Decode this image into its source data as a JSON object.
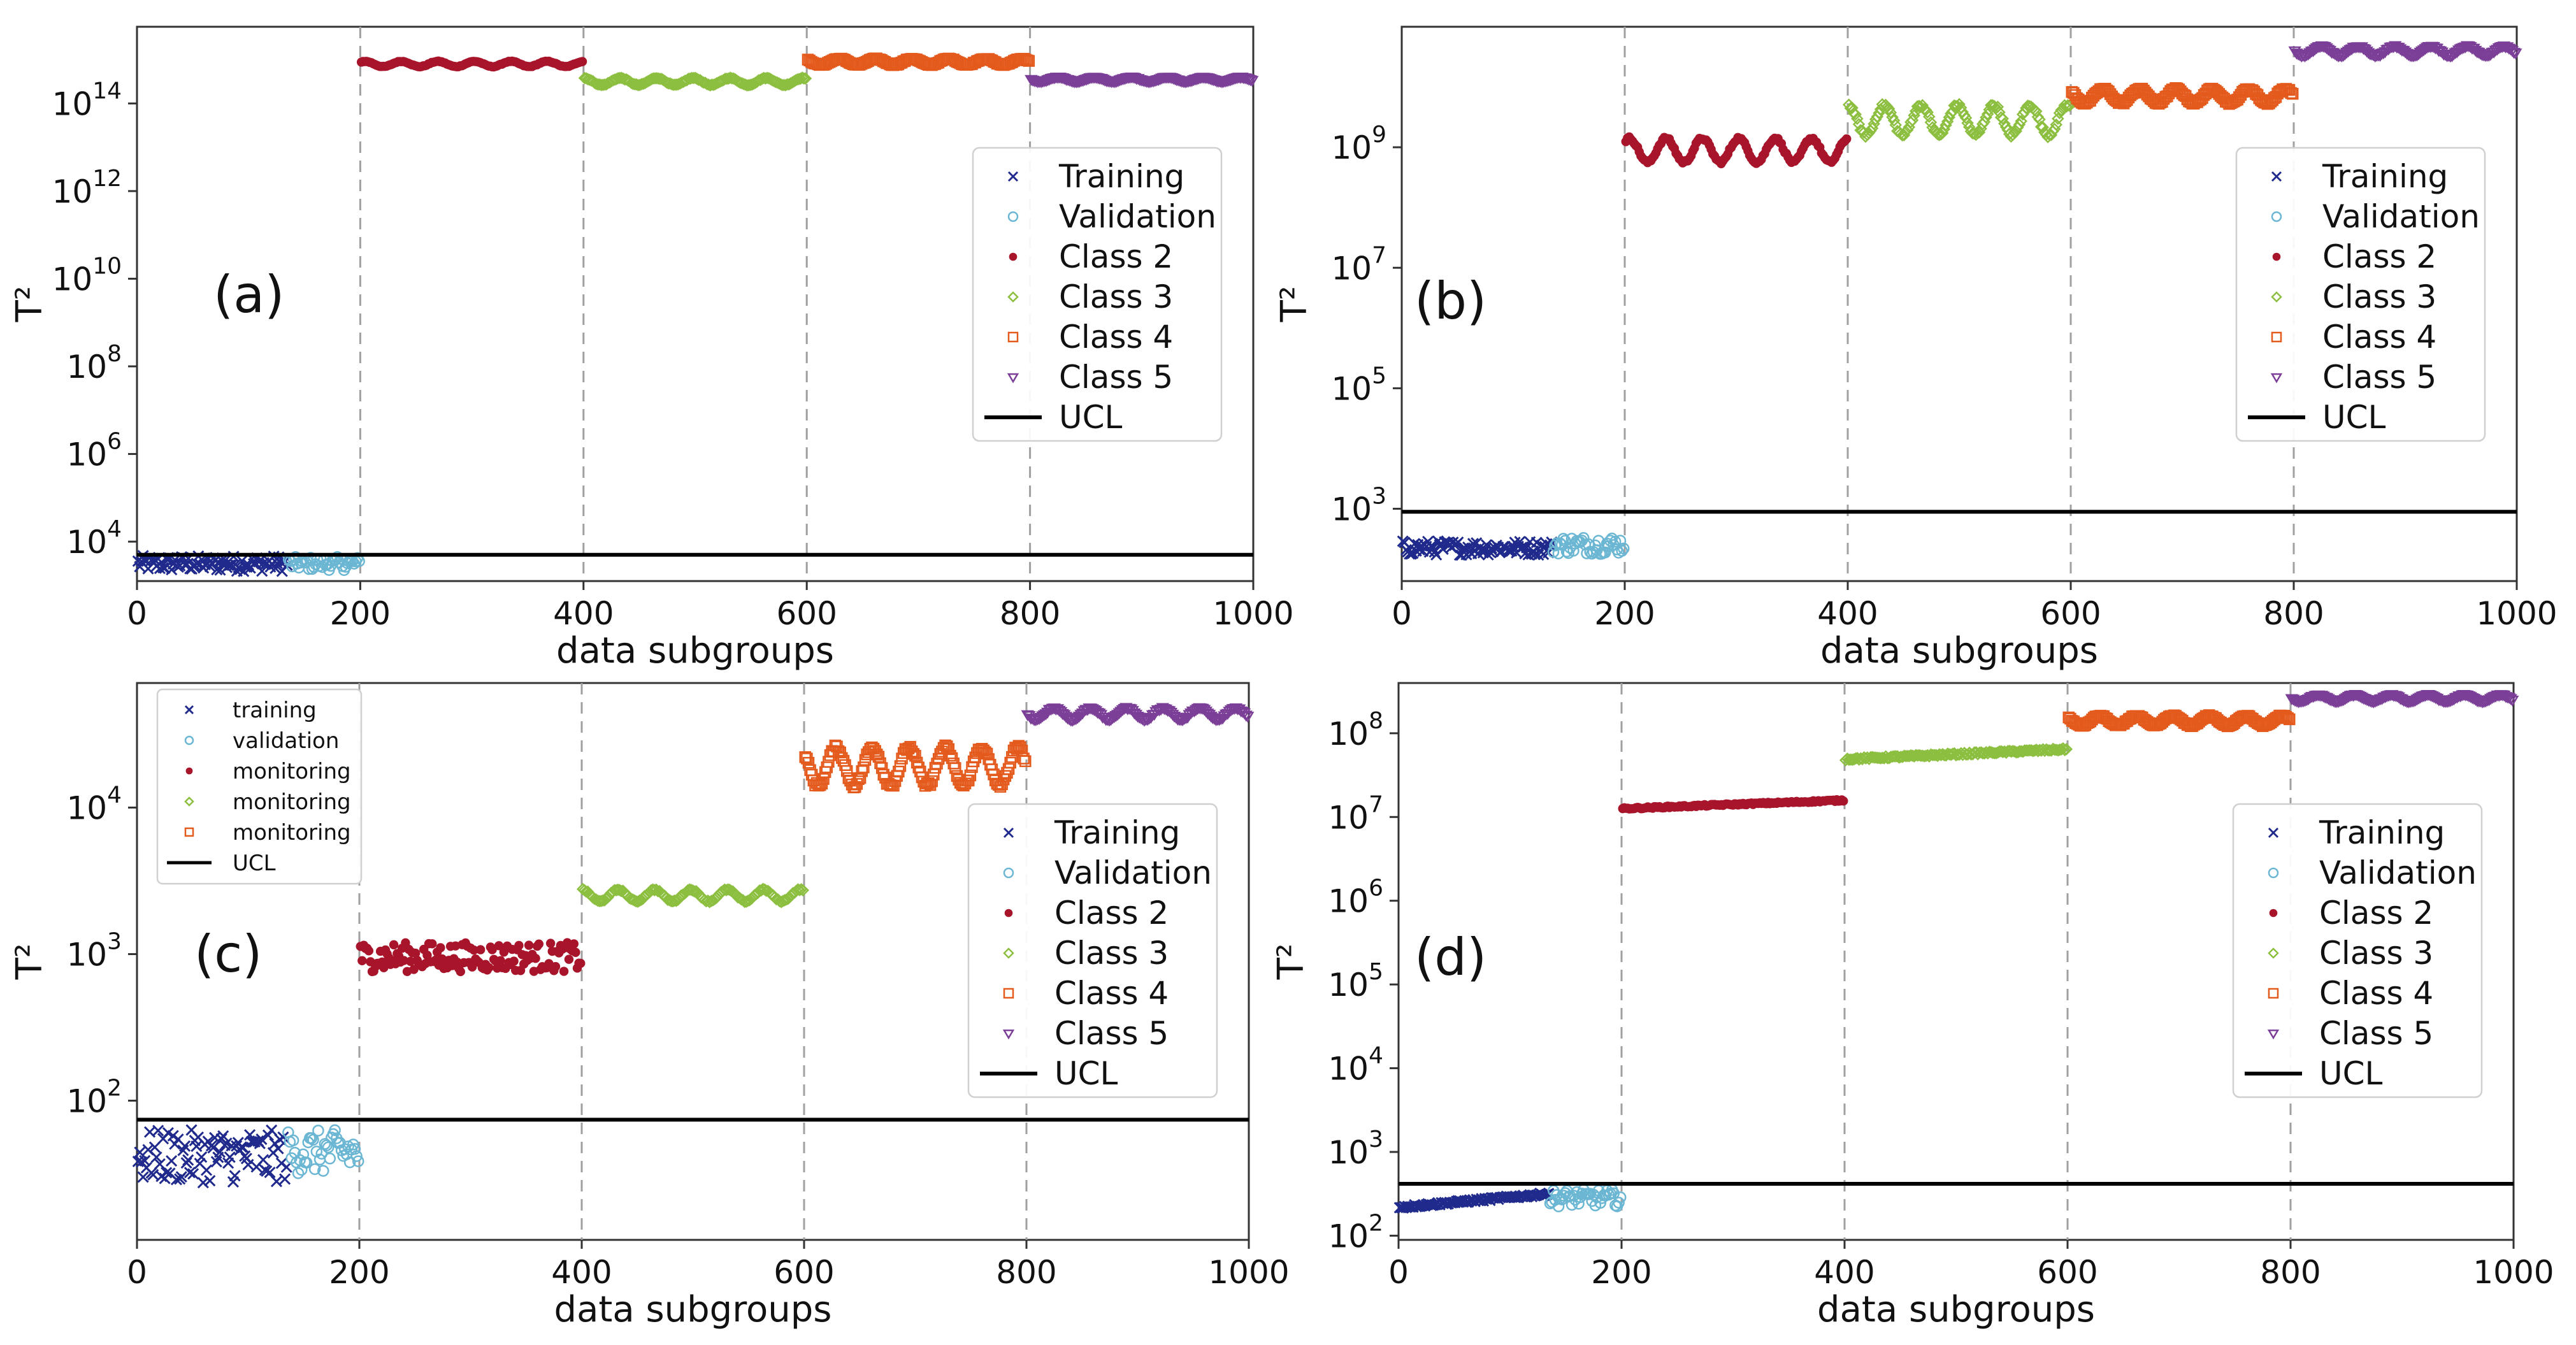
{
  "figure": {
    "colors": {
      "training": "#1f2a8c",
      "validation": "#6bb6d3",
      "class2": "#a8152b",
      "class3": "#8cbf3f",
      "class4": "#e45a1d",
      "class5": "#7b3f98",
      "ucl": "#000000",
      "divider": "#a0a0a0"
    },
    "legend": [
      {
        "name": "Training",
        "key": "training",
        "marker": "x"
      },
      {
        "name": "Validation",
        "key": "validation",
        "marker": "circle"
      },
      {
        "name": "Class 2",
        "key": "class2",
        "marker": "dot"
      },
      {
        "name": "Class 3",
        "key": "class3",
        "marker": "diamond"
      },
      {
        "name": "Class 4",
        "key": "class4",
        "marker": "square"
      },
      {
        "name": "Class 5",
        "key": "class5",
        "marker": "triangle-down"
      },
      {
        "name": "UCL",
        "key": "ucl",
        "marker": "line"
      }
    ],
    "inner_legend_c": [
      {
        "name": "training",
        "key": "training",
        "marker": "x"
      },
      {
        "name": "validation",
        "key": "validation",
        "marker": "circle"
      },
      {
        "name": "monitoring",
        "key": "class2",
        "marker": "dot"
      },
      {
        "name": "monitoring",
        "key": "class3",
        "marker": "diamond"
      },
      {
        "name": "monitoring",
        "key": "class4",
        "marker": "square"
      },
      {
        "name": "UCL",
        "key": "ucl",
        "marker": "line"
      }
    ]
  },
  "chart_data": [
    {
      "panel": "(a)",
      "type": "scatter",
      "xlabel": "data subgroups",
      "ylabel": "T²",
      "xlim": [
        0,
        1000
      ],
      "xticks": [
        0,
        200,
        400,
        600,
        800,
        1000
      ],
      "ylog": true,
      "ylim_log10": [
        3.1,
        15.75
      ],
      "yticks_log10": [
        4,
        6,
        8,
        10,
        12,
        14
      ],
      "ucl_log10": 3.7,
      "dividers": [
        200,
        400,
        600,
        800
      ],
      "legend_position": "right",
      "series": [
        {
          "name": "Training",
          "key": "training",
          "x_range": [
            1,
            135
          ],
          "log10_center": 3.5,
          "spread": 0.18,
          "pattern": "noise"
        },
        {
          "name": "Validation",
          "key": "validation",
          "x_range": [
            136,
            200
          ],
          "log10_center": 3.5,
          "spread": 0.15,
          "pattern": "noise"
        },
        {
          "name": "Class 2",
          "key": "class2",
          "x_range": [
            201,
            400
          ],
          "log10_center": 14.9,
          "spread": 0.06,
          "pattern": "wave"
        },
        {
          "name": "Class 3",
          "key": "class3",
          "x_range": [
            401,
            600
          ],
          "log10_center": 14.5,
          "spread": 0.08,
          "pattern": "wave"
        },
        {
          "name": "Class 4",
          "key": "class4",
          "x_range": [
            601,
            800
          ],
          "log10_center": 14.95,
          "spread": 0.07,
          "pattern": "wave"
        },
        {
          "name": "Class 5",
          "key": "class5",
          "x_range": [
            801,
            1000
          ],
          "log10_center": 14.55,
          "spread": 0.05,
          "pattern": "wave"
        }
      ]
    },
    {
      "panel": "(b)",
      "type": "scatter",
      "xlabel": "data subgroups",
      "ylabel": "T²",
      "xlim": [
        0,
        1000
      ],
      "xticks": [
        0,
        200,
        400,
        600,
        800,
        1000
      ],
      "ylog": true,
      "ylim_log10": [
        1.8,
        11.0
      ],
      "yticks_log10": [
        3,
        5,
        7,
        9
      ],
      "ucl_log10": 2.95,
      "dividers": [
        200,
        400,
        600,
        800
      ],
      "legend_position": "right",
      "series": [
        {
          "name": "Training",
          "key": "training",
          "x_range": [
            1,
            135
          ],
          "log10_center": 2.35,
          "spread": 0.12,
          "pattern": "noise"
        },
        {
          "name": "Validation",
          "key": "validation",
          "x_range": [
            136,
            200
          ],
          "log10_center": 2.4,
          "spread": 0.15,
          "pattern": "noise"
        },
        {
          "name": "Class 2",
          "key": "class2",
          "x_range": [
            201,
            400
          ],
          "log10_center": 8.95,
          "spread": 0.2,
          "pattern": "wave"
        },
        {
          "name": "Class 3",
          "key": "class3",
          "x_range": [
            401,
            600
          ],
          "log10_center": 9.45,
          "spread": 0.25,
          "pattern": "wave"
        },
        {
          "name": "Class 4",
          "key": "class4",
          "x_range": [
            601,
            800
          ],
          "log10_center": 9.85,
          "spread": 0.12,
          "pattern": "wave"
        },
        {
          "name": "Class 5",
          "key": "class5",
          "x_range": [
            801,
            1000
          ],
          "log10_center": 10.6,
          "spread": 0.08,
          "pattern": "wave"
        }
      ]
    },
    {
      "panel": "(c)",
      "type": "scatter",
      "xlabel": "data subgroups",
      "ylabel": "T²",
      "xlim": [
        0,
        1000
      ],
      "xticks": [
        0,
        200,
        400,
        600,
        800,
        1000
      ],
      "ylog": true,
      "ylim_log10": [
        1.05,
        4.85
      ],
      "yticks_log10": [
        2,
        3,
        4
      ],
      "ucl_log10": 1.87,
      "dividers": [
        200,
        400,
        600,
        800
      ],
      "legend_position": "right",
      "series": [
        {
          "name": "Training",
          "key": "training",
          "x_range": [
            1,
            135
          ],
          "log10_center": 1.62,
          "spread": 0.18,
          "pattern": "noise"
        },
        {
          "name": "Validation",
          "key": "validation",
          "x_range": [
            136,
            200
          ],
          "log10_center": 1.65,
          "spread": 0.15,
          "pattern": "noise"
        },
        {
          "name": "Class 2",
          "key": "class2",
          "x_range": [
            201,
            400
          ],
          "log10_center": 2.98,
          "spread": 0.1,
          "pattern": "noise"
        },
        {
          "name": "Class 3",
          "key": "class3",
          "x_range": [
            401,
            600
          ],
          "log10_center": 3.4,
          "spread": 0.04,
          "pattern": "wave"
        },
        {
          "name": "Class 4",
          "key": "class4",
          "x_range": [
            601,
            800
          ],
          "log10_center": 4.28,
          "spread": 0.13,
          "pattern": "wave"
        },
        {
          "name": "Class 5",
          "key": "class5",
          "x_range": [
            801,
            1000
          ],
          "log10_center": 4.64,
          "spread": 0.04,
          "pattern": "wave"
        }
      ]
    },
    {
      "panel": "(d)",
      "type": "scatter",
      "xlabel": "data subgroups",
      "ylabel": "T²",
      "xlim": [
        0,
        1000
      ],
      "xticks": [
        0,
        200,
        400,
        600,
        800,
        1000
      ],
      "ylog": true,
      "ylim_log10": [
        1.95,
        8.6
      ],
      "yticks_log10": [
        2,
        3,
        4,
        5,
        6,
        7,
        8
      ],
      "ucl_log10": 2.62,
      "dividers": [
        200,
        400,
        600,
        800
      ],
      "legend_position": "right",
      "series": [
        {
          "name": "Training",
          "key": "training",
          "x_range": [
            1,
            135
          ],
          "log10_center": 2.42,
          "spread": 0.08,
          "pattern": "rise"
        },
        {
          "name": "Validation",
          "key": "validation",
          "x_range": [
            136,
            200
          ],
          "log10_center": 2.45,
          "spread": 0.1,
          "pattern": "noise"
        },
        {
          "name": "Class 2",
          "key": "class2",
          "x_range": [
            201,
            400
          ],
          "log10_center": 7.15,
          "spread": 0.05,
          "pattern": "rise"
        },
        {
          "name": "Class 3",
          "key": "class3",
          "x_range": [
            401,
            600
          ],
          "log10_center": 7.75,
          "spread": 0.06,
          "pattern": "rise"
        },
        {
          "name": "Class 4",
          "key": "class4",
          "x_range": [
            601,
            800
          ],
          "log10_center": 8.15,
          "spread": 0.06,
          "pattern": "wave"
        },
        {
          "name": "Class 5",
          "key": "class5",
          "x_range": [
            801,
            1000
          ],
          "log10_center": 8.42,
          "spread": 0.04,
          "pattern": "wave"
        }
      ]
    }
  ]
}
